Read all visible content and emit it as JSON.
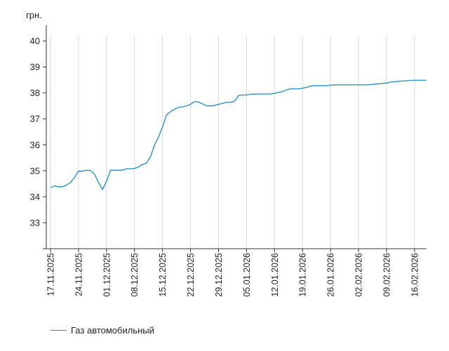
{
  "chart_data": {
    "type": "line",
    "y_unit": "грн.",
    "ylim": [
      32,
      40.5
    ],
    "y_ticks": [
      33,
      34,
      35,
      36,
      37,
      38,
      39,
      40
    ],
    "x_range": [
      "2025-11-17",
      "2026-02-19"
    ],
    "x_ticks": [
      {
        "date": "2025-11-17",
        "label": "17.11.2025"
      },
      {
        "date": "2025-11-24",
        "label": "24.11.2025"
      },
      {
        "date": "2025-12-01",
        "label": "01.12.2025"
      },
      {
        "date": "2025-12-08",
        "label": "08.12.2025"
      },
      {
        "date": "2025-12-15",
        "label": "15.12.2025"
      },
      {
        "date": "2025-12-22",
        "label": "22.12.2025"
      },
      {
        "date": "2025-12-29",
        "label": "29.12.2025"
      },
      {
        "date": "2026-01-05",
        "label": "05.01.2026"
      },
      {
        "date": "2026-01-12",
        "label": "12.01.2026"
      },
      {
        "date": "2026-01-19",
        "label": "19.01.2026"
      },
      {
        "date": "2026-01-26",
        "label": "26.01.2026"
      },
      {
        "date": "2026-02-02",
        "label": "02.02.2026"
      },
      {
        "date": "2026-02-09",
        "label": "09.02.2026"
      },
      {
        "date": "2026-02-16",
        "label": "16.02.2026"
      }
    ],
    "grid": "vertical",
    "legend_position": "bottom-left",
    "series": [
      {
        "name": "Газ автомобильный",
        "color": "#1f8ac0",
        "points": [
          [
            "2025-11-17",
            34.35
          ],
          [
            "2025-11-18",
            34.42
          ],
          [
            "2025-11-19",
            34.38
          ],
          [
            "2025-11-20",
            34.39
          ],
          [
            "2025-11-21",
            34.45
          ],
          [
            "2025-11-22",
            34.55
          ],
          [
            "2025-11-23",
            34.75
          ],
          [
            "2025-11-24",
            34.99
          ],
          [
            "2025-11-25",
            34.99
          ],
          [
            "2025-11-26",
            35.02
          ],
          [
            "2025-11-27",
            35.01
          ],
          [
            "2025-11-28",
            34.87
          ],
          [
            "2025-11-29",
            34.55
          ],
          [
            "2025-11-30",
            34.28
          ],
          [
            "2025-12-01",
            34.6
          ],
          [
            "2025-12-02",
            35.02
          ],
          [
            "2025-12-03",
            35.02
          ],
          [
            "2025-12-04",
            35.02
          ],
          [
            "2025-12-05",
            35.03
          ],
          [
            "2025-12-06",
            35.08
          ],
          [
            "2025-12-07",
            35.08
          ],
          [
            "2025-12-08",
            35.09
          ],
          [
            "2025-12-09",
            35.15
          ],
          [
            "2025-12-10",
            35.25
          ],
          [
            "2025-12-11",
            35.3
          ],
          [
            "2025-12-12",
            35.55
          ],
          [
            "2025-12-13",
            36.0
          ],
          [
            "2025-12-14",
            36.3
          ],
          [
            "2025-12-15",
            36.7
          ],
          [
            "2025-12-16",
            37.15
          ],
          [
            "2025-12-17",
            37.28
          ],
          [
            "2025-12-18",
            37.37
          ],
          [
            "2025-12-19",
            37.45
          ],
          [
            "2025-12-20",
            37.46
          ],
          [
            "2025-12-21",
            37.5
          ],
          [
            "2025-12-22",
            37.56
          ],
          [
            "2025-12-23",
            37.67
          ],
          [
            "2025-12-24",
            37.65
          ],
          [
            "2025-12-25",
            37.58
          ],
          [
            "2025-12-26",
            37.5
          ],
          [
            "2025-12-27",
            37.5
          ],
          [
            "2025-12-28",
            37.52
          ],
          [
            "2025-12-29",
            37.56
          ],
          [
            "2025-12-30",
            37.6
          ],
          [
            "2025-12-31",
            37.64
          ],
          [
            "2026-01-01",
            37.64
          ],
          [
            "2026-01-02",
            37.68
          ],
          [
            "2026-01-03",
            37.9
          ],
          [
            "2026-01-04",
            37.92
          ],
          [
            "2026-01-05",
            37.92
          ],
          [
            "2026-01-06",
            37.95
          ],
          [
            "2026-01-07",
            37.96
          ],
          [
            "2026-01-08",
            37.96
          ],
          [
            "2026-01-09",
            37.96
          ],
          [
            "2026-01-10",
            37.96
          ],
          [
            "2026-01-11",
            37.96
          ],
          [
            "2026-01-12",
            37.98
          ],
          [
            "2026-01-13",
            38.02
          ],
          [
            "2026-01-14",
            38.05
          ],
          [
            "2026-01-15",
            38.12
          ],
          [
            "2026-01-16",
            38.16
          ],
          [
            "2026-01-17",
            38.16
          ],
          [
            "2026-01-18",
            38.16
          ],
          [
            "2026-01-19",
            38.18
          ],
          [
            "2026-01-20",
            38.22
          ],
          [
            "2026-01-21",
            38.26
          ],
          [
            "2026-01-22",
            38.28
          ],
          [
            "2026-01-23",
            38.28
          ],
          [
            "2026-01-24",
            38.28
          ],
          [
            "2026-01-25",
            38.28
          ],
          [
            "2026-01-26",
            38.3
          ],
          [
            "2026-01-27",
            38.31
          ],
          [
            "2026-01-28",
            38.31
          ],
          [
            "2026-01-29",
            38.31
          ],
          [
            "2026-01-30",
            38.31
          ],
          [
            "2026-01-31",
            38.31
          ],
          [
            "2026-02-01",
            38.31
          ],
          [
            "2026-02-02",
            38.31
          ],
          [
            "2026-02-03",
            38.31
          ],
          [
            "2026-02-04",
            38.31
          ],
          [
            "2026-02-05",
            38.32
          ],
          [
            "2026-02-06",
            38.34
          ],
          [
            "2026-02-07",
            38.35
          ],
          [
            "2026-02-08",
            38.36
          ],
          [
            "2026-02-09",
            38.38
          ],
          [
            "2026-02-10",
            38.42
          ],
          [
            "2026-02-11",
            38.43
          ],
          [
            "2026-02-12",
            38.45
          ],
          [
            "2026-02-13",
            38.46
          ],
          [
            "2026-02-14",
            38.47
          ],
          [
            "2026-02-15",
            38.48
          ],
          [
            "2026-02-16",
            38.49
          ],
          [
            "2026-02-17",
            38.49
          ],
          [
            "2026-02-18",
            38.49
          ],
          [
            "2026-02-19",
            38.49
          ]
        ]
      }
    ]
  }
}
